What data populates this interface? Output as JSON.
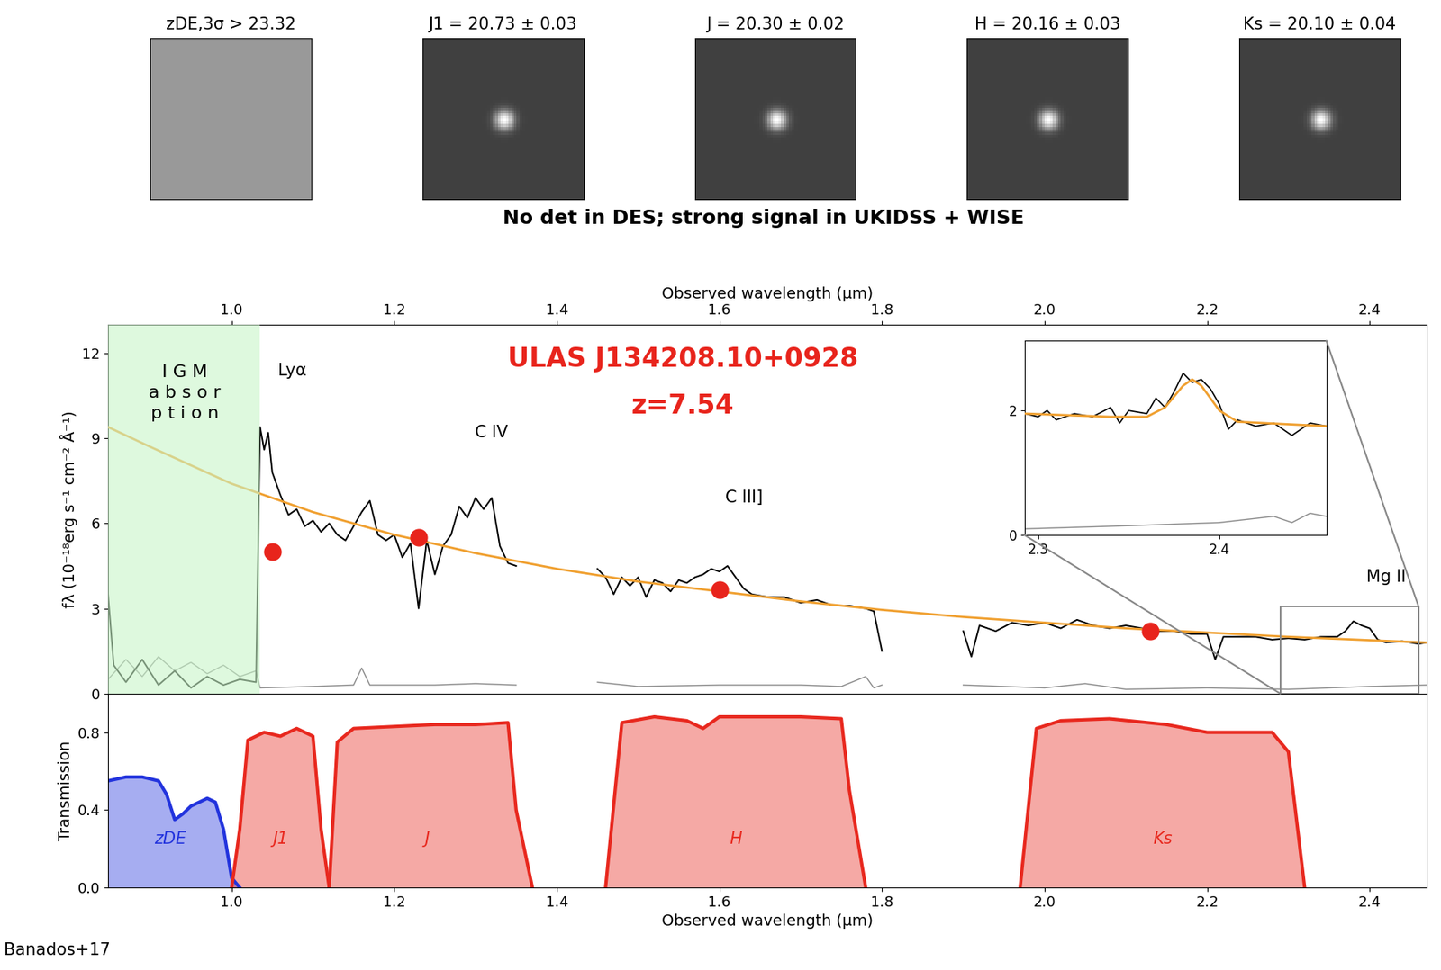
{
  "thumbnails": [
    {
      "title": "zDE,3σ > 23.32",
      "detected": false
    },
    {
      "title": "J1 = 20.73 ± 0.03",
      "detected": true
    },
    {
      "title": "J = 20.30 ± 0.02",
      "detected": true
    },
    {
      "title": "H = 20.16 ± 0.03",
      "detected": true
    },
    {
      "title": "Ks = 20.10 ± 0.04",
      "detected": true
    }
  ],
  "note": "No det in DES; strong signal in UKIDSS + WISE",
  "credit": "Banados+17",
  "chart_data": [
    {
      "type": "line",
      "title": "ULAS J134208.10+0928",
      "subtitle": "z=7.54",
      "x_label": "Observed wavelength (µm)",
      "y_label": "fλ (10⁻¹⁸erg s⁻¹ cm⁻² Å⁻¹)",
      "xlim": [
        0.848,
        2.47
      ],
      "ylim": [
        0,
        13
      ],
      "xticks": [
        1.0,
        1.2,
        1.4,
        1.6,
        1.8,
        2.0,
        2.2,
        2.4
      ],
      "yticks": [
        0,
        3,
        6,
        9,
        12
      ],
      "shaded_region": {
        "x": [
          0.848,
          1.035
        ],
        "color": "#c8f5c8"
      },
      "zoom_region": {
        "x": [
          2.29,
          2.46
        ],
        "y": [
          0,
          3.08
        ]
      },
      "annotations": [
        {
          "text": "I G M\na b s o r\np t i o n",
          "x": 0.942,
          "y": 10.6
        },
        {
          "text": "Lyα",
          "x": 1.075,
          "y": 11.4
        },
        {
          "text": "C IV",
          "x": 1.32,
          "y": 9.2
        },
        {
          "text": "C III]",
          "x": 1.63,
          "y": 6.9
        },
        {
          "text": "Mg II",
          "x": 2.42,
          "y": 4.1
        }
      ],
      "series": [
        {
          "color": "#888888",
          "x": [
            0.848,
            0.87,
            0.89,
            0.91,
            0.93,
            0.95,
            0.97,
            0.99,
            1.01,
            1.03,
            1.035,
            1.1,
            1.15,
            1.16,
            1.17,
            1.25,
            1.3,
            1.35,
            1.4,
            1.45,
            1.5,
            1.6,
            1.7,
            1.75,
            1.78,
            1.79,
            1.8,
            1.85,
            1.9,
            2.0,
            2.05,
            2.1,
            2.2,
            2.3,
            2.4,
            2.47
          ],
          "values": [
            0.5,
            1.2,
            0.6,
            1.3,
            0.8,
            1.1,
            0.7,
            1.0,
            0.6,
            0.8,
            0.2,
            0.25,
            0.3,
            0.9,
            0.3,
            0.3,
            0.35,
            0.3,
            null,
            0.4,
            0.25,
            0.3,
            0.3,
            0.25,
            0.6,
            0.2,
            0.3,
            null,
            0.3,
            0.2,
            0.35,
            0.15,
            0.2,
            0.15,
            0.25,
            0.3
          ]
        },
        {
          "color": "#000000",
          "x": [
            0.848,
            0.855,
            0.87,
            0.89,
            0.91,
            0.93,
            0.95,
            0.97,
            0.99,
            1.01,
            1.03,
            1.035,
            1.04,
            1.045,
            1.05,
            1.06,
            1.07,
            1.08,
            1.09,
            1.1,
            1.11,
            1.12,
            1.13,
            1.14,
            1.15,
            1.16,
            1.17,
            1.18,
            1.19,
            1.2,
            1.21,
            1.22,
            1.23,
            1.24,
            1.25,
            1.26,
            1.27,
            1.28,
            1.29,
            1.3,
            1.31,
            1.32,
            1.33,
            1.34,
            1.35,
            1.4,
            1.45,
            1.46,
            1.47,
            1.48,
            1.49,
            1.5,
            1.51,
            1.52,
            1.53,
            1.54,
            1.55,
            1.56,
            1.57,
            1.58,
            1.59,
            1.6,
            1.61,
            1.62,
            1.63,
            1.64,
            1.66,
            1.68,
            1.7,
            1.72,
            1.74,
            1.76,
            1.78,
            1.79,
            1.8,
            1.85,
            1.9,
            1.91,
            1.92,
            1.94,
            1.96,
            1.98,
            2.0,
            2.02,
            2.04,
            2.06,
            2.08,
            2.1,
            2.12,
            2.14,
            2.16,
            2.18,
            2.2,
            2.21,
            2.22,
            2.24,
            2.26,
            2.28,
            2.3,
            2.32,
            2.34,
            2.36,
            2.37,
            2.38,
            2.39,
            2.4,
            2.41,
            2.42,
            2.44,
            2.46,
            2.47
          ],
          "values": [
            3.5,
            1.0,
            0.4,
            1.2,
            0.3,
            0.8,
            0.2,
            0.6,
            0.3,
            0.5,
            0.4,
            9.4,
            8.6,
            9.2,
            7.8,
            7.0,
            6.3,
            6.5,
            5.9,
            6.1,
            5.7,
            6.0,
            5.6,
            5.4,
            5.9,
            6.4,
            6.8,
            5.6,
            5.4,
            5.6,
            4.8,
            5.3,
            3.0,
            5.4,
            4.2,
            5.2,
            5.6,
            6.6,
            6.2,
            6.9,
            6.5,
            6.9,
            5.2,
            4.6,
            4.5,
            null,
            4.4,
            4.1,
            3.5,
            4.1,
            3.8,
            4.1,
            3.4,
            4.0,
            3.9,
            3.6,
            4.0,
            3.9,
            4.1,
            4.2,
            4.4,
            4.3,
            4.5,
            4.1,
            3.7,
            3.5,
            3.4,
            3.4,
            3.2,
            3.3,
            3.1,
            3.1,
            3.0,
            2.9,
            1.5,
            null,
            2.2,
            1.3,
            2.4,
            2.2,
            2.5,
            2.4,
            2.5,
            2.3,
            2.6,
            2.4,
            2.3,
            2.4,
            2.3,
            2.2,
            2.2,
            2.1,
            2.1,
            1.2,
            2.0,
            2.0,
            2.0,
            1.9,
            1.95,
            1.9,
            2.0,
            2.0,
            2.2,
            2.55,
            2.4,
            2.3,
            1.9,
            1.8,
            1.85,
            1.75,
            1.8
          ]
        },
        {
          "color": "#f0a030",
          "x": [
            0.848,
            0.9,
            1.0,
            1.1,
            1.2,
            1.3,
            1.4,
            1.5,
            1.6,
            1.7,
            1.8,
            1.9,
            2.0,
            2.1,
            2.2,
            2.3,
            2.4,
            2.47
          ],
          "values": [
            9.4,
            8.7,
            7.4,
            6.4,
            5.6,
            4.95,
            4.4,
            3.95,
            3.6,
            3.25,
            2.95,
            2.7,
            2.5,
            2.3,
            2.15,
            2.0,
            1.88,
            1.8
          ]
        },
        {
          "type": "scatter",
          "marker": "o",
          "color": "#e8241c",
          "x": [
            1.05,
            1.23,
            1.6,
            2.13
          ],
          "values": [
            5.0,
            5.5,
            3.65,
            2.2
          ]
        }
      ]
    },
    {
      "type": "line",
      "xlim": [
        2.2925,
        2.459
      ],
      "ylim": [
        0,
        3.12
      ],
      "xticks": [
        2.3,
        2.4
      ],
      "yticks": [
        0,
        2
      ],
      "series": [
        {
          "color": "#888888",
          "x": [
            2.293,
            2.35,
            2.4,
            2.43,
            2.44,
            2.45,
            2.459
          ],
          "values": [
            0.1,
            0.15,
            0.2,
            0.3,
            0.2,
            0.35,
            0.3
          ]
        },
        {
          "color": "#000000",
          "x": [
            2.293,
            2.3,
            2.305,
            2.31,
            2.32,
            2.33,
            2.34,
            2.345,
            2.35,
            2.36,
            2.365,
            2.37,
            2.375,
            2.38,
            2.385,
            2.39,
            2.395,
            2.4,
            2.405,
            2.41,
            2.42,
            2.43,
            2.44,
            2.45,
            2.459
          ],
          "values": [
            1.95,
            1.9,
            2.0,
            1.85,
            1.95,
            1.9,
            2.05,
            1.8,
            2.0,
            1.95,
            2.2,
            2.05,
            2.3,
            2.6,
            2.45,
            2.5,
            2.35,
            2.1,
            1.7,
            1.85,
            1.75,
            1.8,
            1.6,
            1.8,
            1.75
          ]
        },
        {
          "color": "#f0a030",
          "x": [
            2.293,
            2.34,
            2.36,
            2.37,
            2.38,
            2.385,
            2.39,
            2.4,
            2.41,
            2.459
          ],
          "values": [
            1.95,
            1.9,
            1.9,
            2.05,
            2.4,
            2.5,
            2.4,
            2.0,
            1.82,
            1.75
          ]
        }
      ]
    },
    {
      "type": "area",
      "x_label": "Observed wavelength (µm)",
      "y_label": "Transmission",
      "xlim": [
        0.848,
        2.47
      ],
      "ylim": [
        0,
        1.0
      ],
      "xticks": [
        1.0,
        1.2,
        1.4,
        1.6,
        1.8,
        2.0,
        2.2,
        2.4
      ],
      "yticks": [
        0.0,
        0.4,
        0.8
      ],
      "series": [
        {
          "name": "zDE",
          "color": "#2233dd",
          "x": [
            0.848,
            0.87,
            0.89,
            0.91,
            0.92,
            0.93,
            0.94,
            0.95,
            0.97,
            0.98,
            0.99,
            1.0,
            1.01
          ],
          "values": [
            0.55,
            0.57,
            0.57,
            0.55,
            0.48,
            0.35,
            0.38,
            0.42,
            0.46,
            0.44,
            0.3,
            0.05,
            0.0
          ]
        },
        {
          "name": "J1",
          "color": "#e8281e",
          "x": [
            1.0,
            1.01,
            1.02,
            1.04,
            1.06,
            1.08,
            1.1,
            1.11,
            1.12
          ],
          "values": [
            0.0,
            0.3,
            0.76,
            0.8,
            0.78,
            0.82,
            0.78,
            0.3,
            0.0
          ]
        },
        {
          "name": "J",
          "color": "#e8281e",
          "x": [
            1.12,
            1.13,
            1.15,
            1.2,
            1.25,
            1.3,
            1.34,
            1.35,
            1.37
          ],
          "values": [
            0.0,
            0.75,
            0.82,
            0.83,
            0.84,
            0.84,
            0.85,
            0.4,
            0.0
          ]
        },
        {
          "name": "H",
          "color": "#e8281e",
          "x": [
            1.46,
            1.48,
            1.52,
            1.56,
            1.58,
            1.6,
            1.65,
            1.7,
            1.75,
            1.76,
            1.78
          ],
          "values": [
            0.0,
            0.85,
            0.88,
            0.86,
            0.82,
            0.88,
            0.88,
            0.88,
            0.87,
            0.5,
            0.0
          ]
        },
        {
          "name": "Ks",
          "color": "#e8281e",
          "x": [
            1.97,
            1.99,
            2.02,
            2.08,
            2.15,
            2.2,
            2.28,
            2.3,
            2.32
          ],
          "values": [
            0.0,
            0.82,
            0.86,
            0.87,
            0.84,
            0.8,
            0.8,
            0.7,
            0.0
          ]
        }
      ]
    }
  ]
}
